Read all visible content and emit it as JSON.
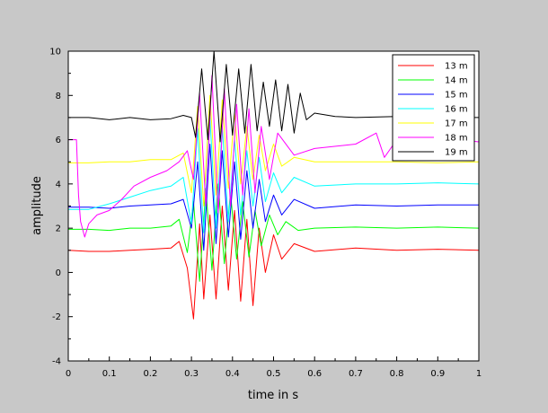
{
  "chart_data": {
    "type": "line",
    "title": "",
    "xlabel": "time in s",
    "ylabel": "amplitude",
    "xlim": [
      0,
      1
    ],
    "ylim": [
      -4,
      10
    ],
    "xticks": [
      0,
      0.1,
      0.2,
      0.3,
      0.4,
      0.5,
      0.6,
      0.7,
      0.8,
      0.9,
      1
    ],
    "xtick_labels": [
      "0",
      "0.1",
      "0.2",
      "0.3",
      "0.4",
      "0.5",
      "0.6",
      "0.7",
      "0.8",
      "0.9",
      "1"
    ],
    "yticks": [
      -4,
      -2,
      0,
      2,
      4,
      6,
      8,
      10
    ],
    "ytick_labels": [
      "-4",
      "-2",
      "0",
      "2",
      "4",
      "6",
      "8",
      "10"
    ],
    "grid": false,
    "legend_position": "top-right",
    "background": "#c8c8c8",
    "plot_background": "#ffffff",
    "series": [
      {
        "name": "13 m",
        "color": "#ff0000",
        "x": [
          0,
          0.05,
          0.1,
          0.15,
          0.2,
          0.25,
          0.27,
          0.29,
          0.305,
          0.32,
          0.33,
          0.345,
          0.36,
          0.375,
          0.39,
          0.405,
          0.42,
          0.435,
          0.45,
          0.465,
          0.48,
          0.5,
          0.52,
          0.55,
          0.6,
          0.7,
          0.8,
          0.9,
          1.0
        ],
        "y": [
          1.0,
          0.95,
          0.95,
          1.0,
          1.05,
          1.1,
          1.4,
          0.2,
          -2.1,
          2.2,
          -1.2,
          2.6,
          -1.2,
          3.0,
          -0.8,
          2.8,
          -1.3,
          2.4,
          -1.5,
          2.0,
          0.0,
          1.7,
          0.6,
          1.3,
          0.95,
          1.1,
          1.0,
          1.05,
          1.0
        ]
      },
      {
        "name": "14 m",
        "color": "#00ff00",
        "x": [
          0,
          0.05,
          0.1,
          0.15,
          0.2,
          0.25,
          0.27,
          0.29,
          0.305,
          0.32,
          0.335,
          0.35,
          0.365,
          0.38,
          0.395,
          0.41,
          0.425,
          0.44,
          0.455,
          0.47,
          0.49,
          0.51,
          0.53,
          0.56,
          0.6,
          0.7,
          0.8,
          0.9,
          1.0
        ],
        "y": [
          1.95,
          1.95,
          1.9,
          2.0,
          2.0,
          2.1,
          2.4,
          0.9,
          3.2,
          -0.4,
          3.8,
          0.1,
          4.0,
          0.4,
          3.6,
          0.6,
          3.2,
          0.7,
          2.8,
          1.2,
          2.6,
          1.7,
          2.3,
          1.9,
          2.0,
          2.05,
          2.0,
          2.05,
          2.0
        ]
      },
      {
        "name": "15 m",
        "color": "#0000ff",
        "x": [
          0,
          0.05,
          0.1,
          0.15,
          0.2,
          0.25,
          0.28,
          0.3,
          0.315,
          0.33,
          0.345,
          0.36,
          0.375,
          0.39,
          0.405,
          0.42,
          0.435,
          0.45,
          0.465,
          0.48,
          0.5,
          0.52,
          0.55,
          0.6,
          0.7,
          0.8,
          0.9,
          1.0
        ],
        "y": [
          2.95,
          2.95,
          2.9,
          3.0,
          3.05,
          3.1,
          3.3,
          2.0,
          5.0,
          1.0,
          5.8,
          1.3,
          5.5,
          1.6,
          5.0,
          1.5,
          4.6,
          2.0,
          4.2,
          2.3,
          3.5,
          2.6,
          3.3,
          2.9,
          3.05,
          3.0,
          3.05,
          3.05
        ]
      },
      {
        "name": "16 m",
        "color": "#00ffff",
        "x": [
          0,
          0.05,
          0.1,
          0.15,
          0.2,
          0.25,
          0.28,
          0.3,
          0.315,
          0.33,
          0.345,
          0.36,
          0.375,
          0.39,
          0.405,
          0.42,
          0.435,
          0.45,
          0.465,
          0.48,
          0.5,
          0.52,
          0.55,
          0.6,
          0.7,
          0.8,
          0.9,
          1.0
        ],
        "y": [
          2.85,
          2.85,
          3.1,
          3.4,
          3.7,
          3.9,
          4.3,
          2.2,
          6.5,
          1.8,
          7.0,
          2.0,
          6.6,
          2.3,
          6.0,
          2.6,
          5.5,
          3.0,
          5.2,
          3.2,
          4.5,
          3.6,
          4.3,
          3.9,
          4.0,
          4.0,
          4.05,
          4.0
        ]
      },
      {
        "name": "17 m",
        "color": "#ffff00",
        "x": [
          0,
          0.05,
          0.1,
          0.15,
          0.2,
          0.25,
          0.28,
          0.3,
          0.315,
          0.33,
          0.345,
          0.36,
          0.375,
          0.39,
          0.405,
          0.42,
          0.435,
          0.45,
          0.465,
          0.48,
          0.5,
          0.52,
          0.55,
          0.6,
          0.7,
          0.8,
          0.9,
          1.0
        ],
        "y": [
          4.95,
          4.95,
          5.0,
          5.0,
          5.1,
          5.1,
          5.4,
          3.6,
          7.5,
          3.0,
          8.0,
          3.5,
          7.8,
          3.8,
          7.2,
          4.0,
          6.6,
          4.2,
          6.2,
          4.6,
          5.8,
          4.8,
          5.2,
          5.0,
          5.0,
          5.0,
          4.95,
          5.0
        ]
      },
      {
        "name": "18 m",
        "color": "#ff00ff",
        "x": [
          0,
          0.02,
          0.025,
          0.03,
          0.04,
          0.05,
          0.07,
          0.1,
          0.13,
          0.16,
          0.2,
          0.24,
          0.27,
          0.29,
          0.305,
          0.32,
          0.335,
          0.35,
          0.365,
          0.38,
          0.395,
          0.41,
          0.425,
          0.44,
          0.455,
          0.47,
          0.49,
          0.51,
          0.55,
          0.6,
          0.7,
          0.75,
          0.77,
          0.8,
          0.85,
          0.9,
          0.95,
          1.0
        ],
        "y": [
          6.0,
          6.0,
          3.5,
          2.3,
          1.6,
          2.2,
          2.6,
          2.8,
          3.3,
          3.9,
          4.3,
          4.6,
          5.0,
          5.5,
          4.2,
          8.1,
          3.0,
          8.9,
          2.7,
          8.3,
          3.0,
          7.6,
          3.5,
          7.4,
          3.6,
          6.6,
          4.2,
          6.3,
          5.3,
          5.6,
          5.8,
          6.3,
          5.2,
          6.0,
          5.9,
          6.1,
          6.0,
          5.9
        ]
      },
      {
        "name": "19 m",
        "color": "#000000",
        "x": [
          0,
          0.05,
          0.1,
          0.15,
          0.2,
          0.25,
          0.28,
          0.3,
          0.31,
          0.325,
          0.34,
          0.355,
          0.37,
          0.385,
          0.4,
          0.415,
          0.43,
          0.445,
          0.46,
          0.475,
          0.49,
          0.505,
          0.52,
          0.535,
          0.55,
          0.565,
          0.58,
          0.6,
          0.65,
          0.7,
          0.8,
          0.9,
          1.0
        ],
        "y": [
          7.0,
          7.0,
          6.9,
          7.0,
          6.9,
          6.95,
          7.1,
          7.0,
          6.1,
          9.2,
          6.0,
          10.0,
          5.9,
          9.4,
          6.2,
          9.2,
          6.3,
          9.4,
          6.4,
          8.6,
          6.6,
          8.7,
          6.4,
          8.5,
          6.3,
          8.1,
          6.9,
          7.2,
          7.05,
          7.0,
          7.05,
          7.0,
          7.0
        ]
      }
    ]
  }
}
